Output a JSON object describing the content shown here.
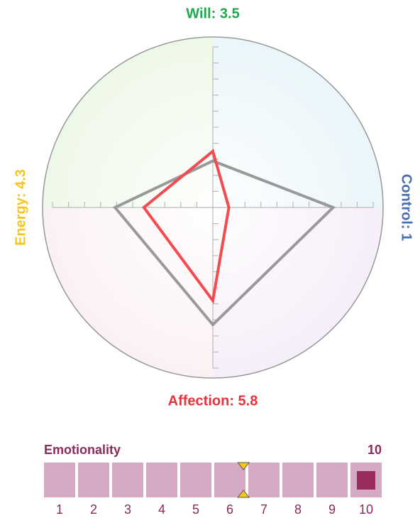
{
  "chart_data": [
    {
      "type": "radar",
      "rlim": [
        0,
        10
      ],
      "rticks": [
        1,
        2,
        3,
        4,
        5,
        6,
        7,
        8,
        9,
        10
      ],
      "series": [
        {
          "color": "#999999",
          "values": [
            2.9,
            7.5,
            7.3,
            6.1
          ]
        },
        {
          "color": "#f24b50",
          "values": [
            3.5,
            1,
            5.8,
            4.3
          ],
          "value_labels": [
            "Will: 3.5",
            "Control: 1",
            "Affection: 5.8",
            "Energy: 4.3"
          ],
          "label_colors": [
            "#1fa64f",
            "#4a6cb0",
            "#e8323c",
            "#f5c61b"
          ]
        }
      ]
    },
    {
      "type": "slider",
      "title": "Emotionality",
      "value": 10,
      "reference": 6.4,
      "xticks": [
        1,
        2,
        3,
        4,
        5,
        6,
        7,
        8,
        9,
        10
      ],
      "color": "#d4a9c4",
      "mark_color": "#9b2d5e",
      "reference_color": "#f5c61b"
    }
  ]
}
